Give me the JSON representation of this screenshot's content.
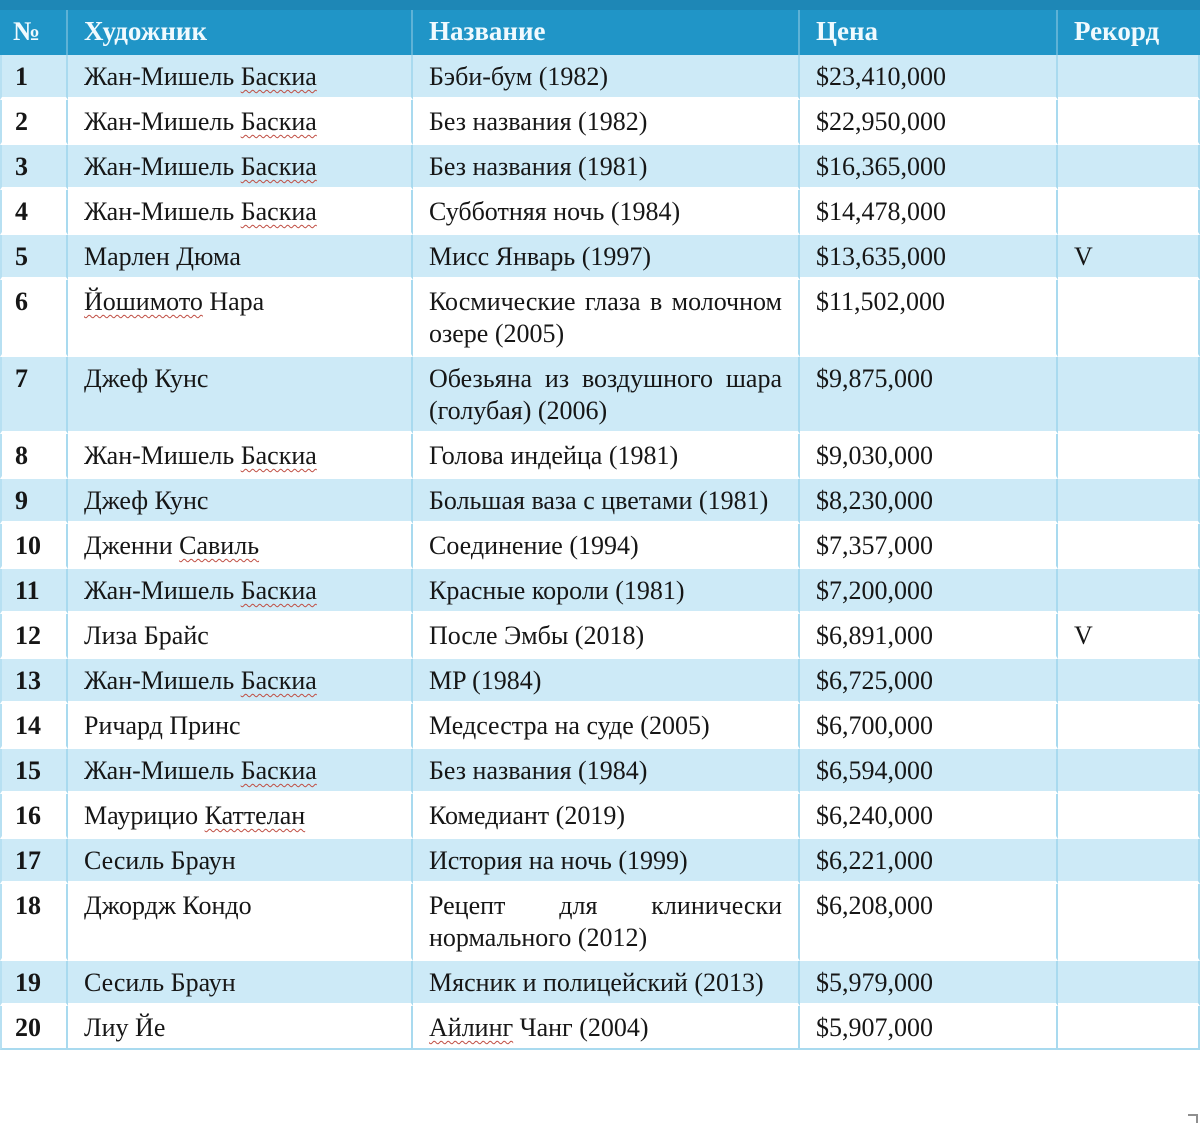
{
  "table": {
    "columns": [
      {
        "id": "num",
        "label": "№"
      },
      {
        "id": "artist",
        "label": "Художник"
      },
      {
        "id": "title",
        "label": "Название"
      },
      {
        "id": "price",
        "label": "Цена"
      },
      {
        "id": "record",
        "label": "Рекорд"
      }
    ],
    "record_mark": "V",
    "rows": [
      {
        "num": "1",
        "artist": [
          {
            "text": "Жан-Мишель ",
            "misspelled": false
          },
          {
            "text": "Баскиа",
            "misspelled": true
          }
        ],
        "title": [
          {
            "text": "Бэби-бум (1982)",
            "misspelled": false
          }
        ],
        "price": "$23,410,000",
        "record": ""
      },
      {
        "num": "2",
        "artist": [
          {
            "text": "Жан-Мишель ",
            "misspelled": false
          },
          {
            "text": "Баскиа",
            "misspelled": true
          }
        ],
        "title": [
          {
            "text": "Без названия (1982)",
            "misspelled": false
          }
        ],
        "price": "$22,950,000",
        "record": ""
      },
      {
        "num": "3",
        "artist": [
          {
            "text": "Жан-Мишель ",
            "misspelled": false
          },
          {
            "text": "Баскиа",
            "misspelled": true
          }
        ],
        "title": [
          {
            "text": "Без названия (1981)",
            "misspelled": false
          }
        ],
        "price": "$16,365,000",
        "record": ""
      },
      {
        "num": "4",
        "artist": [
          {
            "text": "Жан-Мишель ",
            "misspelled": false
          },
          {
            "text": "Баскиа",
            "misspelled": true
          }
        ],
        "title": [
          {
            "text": "Субботняя ночь (1984)",
            "misspelled": false
          }
        ],
        "price": "$14,478,000",
        "record": ""
      },
      {
        "num": "5",
        "artist": [
          {
            "text": "Марлен Дюма",
            "misspelled": false
          }
        ],
        "title": [
          {
            "text": "Мисс Январь (1997)",
            "misspelled": false
          }
        ],
        "price": "$13,635,000",
        "record": "V"
      },
      {
        "num": "6",
        "artist": [
          {
            "text": "Йошимото",
            "misspelled": true
          },
          {
            "text": " Нара",
            "misspelled": false
          }
        ],
        "title": [
          {
            "text": "Космические глаза в молочном озере (2005)",
            "misspelled": false
          }
        ],
        "price": "$11,502,000",
        "record": ""
      },
      {
        "num": "7",
        "artist": [
          {
            "text": "Джеф Кунс",
            "misspelled": false
          }
        ],
        "title": [
          {
            "text": "Обезьяна из воздушного шара (голубая) (2006)",
            "misspelled": false
          }
        ],
        "price": "$9,875,000",
        "record": ""
      },
      {
        "num": "8",
        "artist": [
          {
            "text": "Жан-Мишель ",
            "misspelled": false
          },
          {
            "text": "Баскиа",
            "misspelled": true
          }
        ],
        "title": [
          {
            "text": "Голова индейца (1981)",
            "misspelled": false
          }
        ],
        "price": "$9,030,000",
        "record": ""
      },
      {
        "num": "9",
        "artist": [
          {
            "text": "Джеф Кунс",
            "misspelled": false
          }
        ],
        "title": [
          {
            "text": "Большая ваза с цветами (1981)",
            "misspelled": false
          }
        ],
        "price": "$8,230,000",
        "record": ""
      },
      {
        "num": "10",
        "artist": [
          {
            "text": "Дженни ",
            "misspelled": false
          },
          {
            "text": "Савиль",
            "misspelled": true
          }
        ],
        "title": [
          {
            "text": "Соединение (1994)",
            "misspelled": false
          }
        ],
        "price": "$7,357,000",
        "record": ""
      },
      {
        "num": "11",
        "artist": [
          {
            "text": "Жан-Мишель ",
            "misspelled": false
          },
          {
            "text": "Баскиа",
            "misspelled": true
          }
        ],
        "title": [
          {
            "text": "Красные короли (1981)",
            "misspelled": false
          }
        ],
        "price": "$7,200,000",
        "record": ""
      },
      {
        "num": "12",
        "artist": [
          {
            "text": "Лиза Брайс",
            "misspelled": false
          }
        ],
        "title": [
          {
            "text": "После Эмбы (2018)",
            "misspelled": false
          }
        ],
        "price": "$6,891,000",
        "record": "V"
      },
      {
        "num": "13",
        "artist": [
          {
            "text": "Жан-Мишель ",
            "misspelled": false
          },
          {
            "text": "Баскиа",
            "misspelled": true
          }
        ],
        "title": [
          {
            "text": "MP (1984)",
            "misspelled": false
          }
        ],
        "price": "$6,725,000",
        "record": ""
      },
      {
        "num": "14",
        "artist": [
          {
            "text": "Ричард Принс",
            "misspelled": false
          }
        ],
        "title": [
          {
            "text": "Медсестра на суде (2005)",
            "misspelled": false
          }
        ],
        "price": "$6,700,000",
        "record": ""
      },
      {
        "num": "15",
        "artist": [
          {
            "text": "Жан-Мишель ",
            "misspelled": false
          },
          {
            "text": "Баскиа",
            "misspelled": true
          }
        ],
        "title": [
          {
            "text": "Без названия (1984)",
            "misspelled": false
          }
        ],
        "price": "$6,594,000",
        "record": ""
      },
      {
        "num": "16",
        "artist": [
          {
            "text": "Маурицио ",
            "misspelled": false
          },
          {
            "text": "Каттелан",
            "misspelled": true
          }
        ],
        "title": [
          {
            "text": "Комедиант (2019)",
            "misspelled": false
          }
        ],
        "price": "$6,240,000",
        "record": ""
      },
      {
        "num": "17",
        "artist": [
          {
            "text": "Сесиль Браун",
            "misspelled": false
          }
        ],
        "title": [
          {
            "text": "История на ночь (1999)",
            "misspelled": false
          }
        ],
        "price": "$6,221,000",
        "record": ""
      },
      {
        "num": "18",
        "artist": [
          {
            "text": "Джордж Кондо",
            "misspelled": false
          }
        ],
        "title": [
          {
            "text": "Рецепт для клинически нормального (2012)",
            "misspelled": false
          }
        ],
        "price": "$6,208,000",
        "record": ""
      },
      {
        "num": "19",
        "artist": [
          {
            "text": "Сесиль Браун",
            "misspelled": false
          }
        ],
        "title": [
          {
            "text": "Мясник и полицейский (2013)",
            "misspelled": false
          }
        ],
        "price": "$5,979,000",
        "record": ""
      },
      {
        "num": "20",
        "artist": [
          {
            "text": "Лиу Йе",
            "misspelled": false
          }
        ],
        "title": [
          {
            "text": "Айлинг",
            "misspelled": true
          },
          {
            "text": " Чанг (2004)",
            "misspelled": false
          }
        ],
        "price": "$5,907,000",
        "record": ""
      }
    ]
  },
  "colors": {
    "header_bg": "#2095c7",
    "top_strip": "#1e87b6",
    "alt_row_bg": "#cdeaf7",
    "grid_line": "#a9daef",
    "header_text": "#f0fafe",
    "body_text": "#161616",
    "spellcheck_squiggle": "#bf4d42"
  }
}
